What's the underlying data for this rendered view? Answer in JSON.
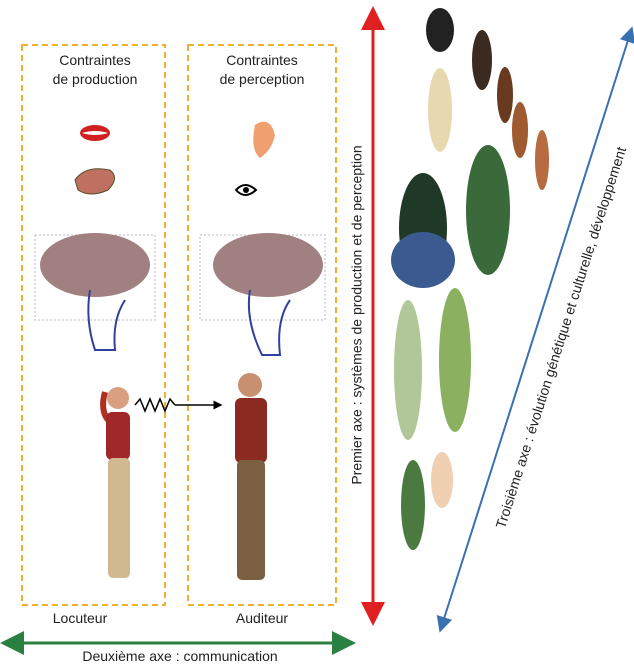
{
  "boxes": [
    {
      "title_lines": [
        "Contraintes",
        "de production"
      ],
      "caption": "Locuteur"
    },
    {
      "title_lines": [
        "Contraintes",
        "de perception"
      ],
      "caption": "Auditeur"
    }
  ],
  "axes": {
    "first": "Premier axe : systèmes de production et de perception",
    "second": "Deuxième axe : communication",
    "third": "Troisième axe : évolution génétique et culturelle, développement"
  }
}
